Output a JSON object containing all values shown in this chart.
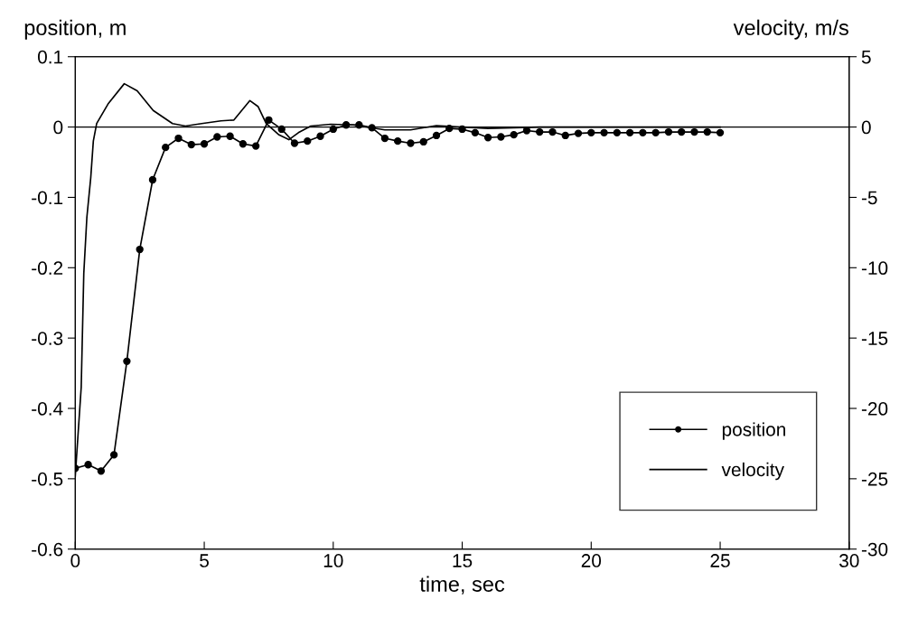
{
  "chart_data": {
    "type": "line",
    "xlabel": "time, sec",
    "ylabel": "position, m",
    "y2label": "velocity, m/s",
    "xlim": [
      0,
      30
    ],
    "xticks": [
      0,
      5,
      10,
      15,
      20,
      25,
      30
    ],
    "ylim": [
      -0.6,
      0.1
    ],
    "yticks": [
      -0.6,
      -0.5,
      -0.4,
      -0.3,
      -0.2,
      -0.1,
      0,
      0.1
    ],
    "y2lim": [
      -30,
      5
    ],
    "y2ticks": [
      -30,
      -25,
      -20,
      -15,
      -10,
      -5,
      0,
      5
    ],
    "grid": false,
    "legend": "bottom right",
    "ref_lines": [
      {
        "axis": "y",
        "value": 0,
        "color": "#000000"
      }
    ],
    "series": [
      {
        "name": "position",
        "color": "#000000",
        "marker": "circle",
        "axis": "y",
        "x": [
          0,
          0.5,
          1,
          1.5,
          2,
          2.5,
          3,
          3.5,
          4,
          4.5,
          5,
          5.5,
          6,
          6.5,
          7,
          7.5,
          8,
          8.5,
          9,
          9.5,
          10,
          10.5,
          11,
          11.5,
          12,
          12.5,
          13,
          13.5,
          14,
          14.5,
          15,
          15.5,
          16,
          16.5,
          17,
          17.5,
          18,
          18.5,
          19,
          19.5,
          20,
          20.5,
          21,
          21.5,
          22,
          22.5,
          23,
          23.5,
          24,
          24.5,
          25
        ],
        "values": [
          -0.485,
          -0.48,
          -0.489,
          -0.466,
          -0.333,
          -0.174,
          -0.075,
          -0.029,
          -0.016,
          -0.025,
          -0.024,
          -0.014,
          -0.013,
          -0.024,
          -0.027,
          0.01,
          -0.003,
          -0.023,
          -0.02,
          -0.013,
          -0.003,
          0.003,
          0.003,
          -0.001,
          -0.016,
          -0.02,
          -0.023,
          -0.021,
          -0.012,
          -0.002,
          -0.003,
          -0.008,
          -0.015,
          -0.014,
          -0.011,
          -0.005,
          -0.007,
          -0.007,
          -0.012,
          -0.009,
          -0.008,
          -0.008,
          -0.008,
          -0.008,
          -0.008,
          -0.008,
          -0.007,
          -0.007,
          -0.007,
          -0.007,
          -0.008
        ]
      },
      {
        "name": "velocity",
        "color": "#000000",
        "marker": "none",
        "axis": "y2",
        "x": [
          0,
          0.23,
          0.33,
          0.45,
          0.6,
          0.7,
          0.83,
          1.27,
          1.9,
          2.4,
          3.02,
          3.77,
          4.27,
          4.9,
          5.65,
          6.15,
          6.77,
          7.09,
          7.4,
          7.9,
          8.28,
          8.65,
          9.13,
          9.9,
          10.78,
          12,
          13,
          14,
          16,
          18,
          20,
          25
        ],
        "values": [
          -24.8,
          -18.5,
          -10.4,
          -6.4,
          -3.6,
          -1.0,
          0.25,
          1.64,
          3.08,
          2.57,
          1.18,
          0.25,
          0.07,
          0.25,
          0.44,
          0.5,
          1.88,
          1.45,
          0.25,
          -0.56,
          -0.9,
          -0.4,
          0.07,
          0.2,
          0.15,
          -0.2,
          -0.2,
          0.1,
          -0.1,
          0,
          0,
          0
        ]
      }
    ]
  }
}
